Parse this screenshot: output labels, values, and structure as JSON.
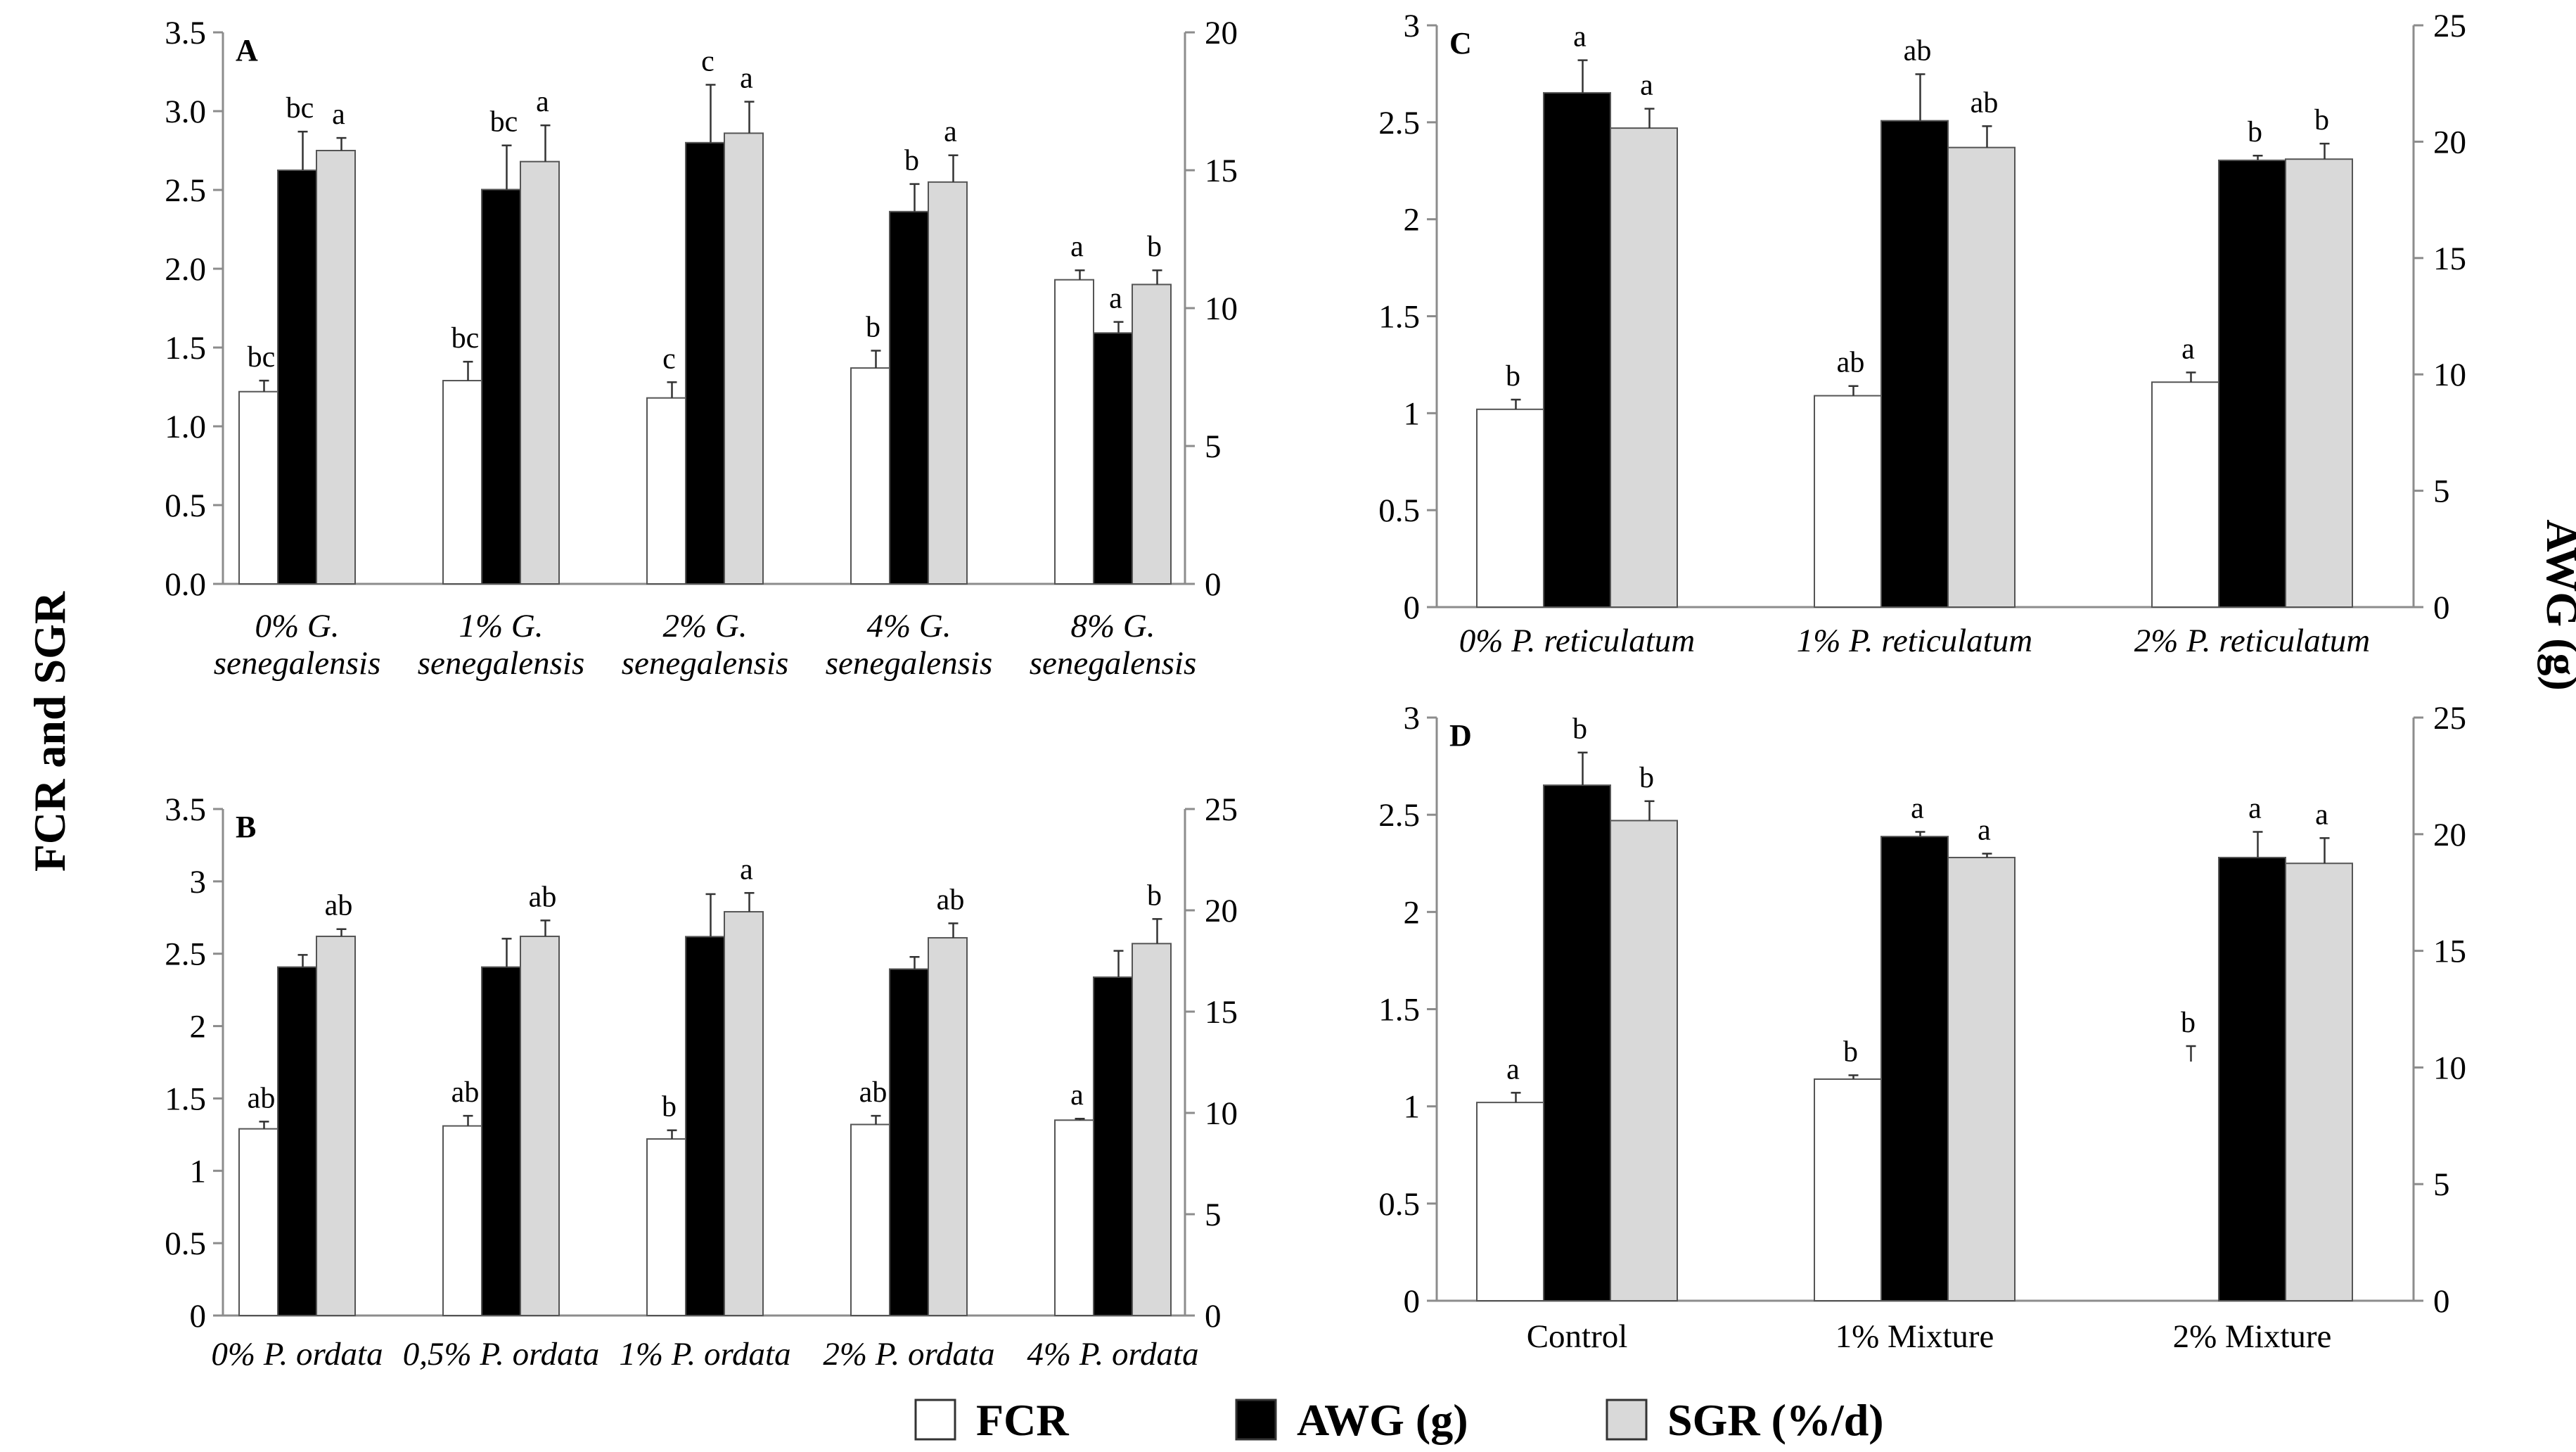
{
  "figure": {
    "left_axis_title": "FCR and SGR",
    "right_axis_title": "AWG (g)"
  },
  "legend": [
    {
      "key": "FCR",
      "label": "FCR",
      "color": "#ffffff"
    },
    {
      "key": "AWG",
      "label": "AWG (g)",
      "color": "#000000"
    },
    {
      "key": "SGR",
      "label": "SGR (%/d)",
      "color": "#d9d9d9"
    }
  ],
  "colors": {
    "FCR": "#ffffff",
    "AWG": "#000000",
    "SGR": "#d9d9d9",
    "edge": "#555555",
    "axis": "#8c8c8c"
  },
  "chart_data": [
    {
      "panel": "A",
      "type": "bar",
      "categories": [
        [
          "0% G.",
          "senegalensis"
        ],
        [
          "1% G.",
          "senegalensis"
        ],
        [
          "2% G.",
          "senegalensis"
        ],
        [
          "4% G.",
          "senegalensis"
        ],
        [
          "8% G.",
          "senegalensis"
        ]
      ],
      "category_style": "italic",
      "left_axis": {
        "min": 0,
        "max": 3.5,
        "step": 0.5,
        "decimals": 1
      },
      "right_axis": {
        "min": 0,
        "max": 20,
        "step": 5
      },
      "series": [
        {
          "name": "FCR",
          "axis": "left",
          "values": [
            1.22,
            1.29,
            1.18,
            1.37,
            1.93
          ],
          "errors": [
            0.07,
            0.12,
            0.1,
            0.11,
            0.06
          ],
          "letters": [
            "bc",
            "bc",
            "c",
            "b",
            "a"
          ]
        },
        {
          "name": "AWG (g)",
          "axis": "right",
          "values": [
            15.0,
            14.3,
            16.0,
            13.5,
            9.1
          ],
          "errors": [
            1.4,
            1.6,
            2.1,
            1.0,
            0.4
          ],
          "letters": [
            "bc",
            "bc",
            "c",
            "b",
            "a"
          ]
        },
        {
          "name": "SGR (%/d)",
          "axis": "left",
          "values": [
            2.75,
            2.68,
            2.86,
            2.55,
            1.9
          ],
          "errors": [
            0.08,
            0.23,
            0.2,
            0.17,
            0.09
          ],
          "letters": [
            "a",
            "a",
            "a",
            "a",
            "b"
          ]
        }
      ]
    },
    {
      "panel": "B",
      "type": "bar",
      "categories": [
        [
          "0% P. ordata"
        ],
        [
          "0,5% P. ordata"
        ],
        [
          "1% P. ordata"
        ],
        [
          "2% P. ordata"
        ],
        [
          "4% P. ordata"
        ]
      ],
      "category_style": "italic",
      "left_axis": {
        "min": 0,
        "max": 3.5,
        "step": 0.5,
        "decimals": -1
      },
      "right_axis": {
        "min": 0,
        "max": 25,
        "step": 5
      },
      "series": [
        {
          "name": "FCR",
          "axis": "left",
          "values": [
            1.29,
            1.31,
            1.22,
            1.32,
            1.35
          ],
          "errors": [
            0.05,
            0.07,
            0.06,
            0.06,
            0.01
          ],
          "letters": [
            "ab",
            "ab",
            "b",
            "ab",
            "a"
          ]
        },
        {
          "name": "AWG (g)",
          "axis": "right",
          "values": [
            17.2,
            17.2,
            18.7,
            17.1,
            16.7
          ],
          "errors": [
            0.6,
            1.4,
            2.1,
            0.6,
            1.3
          ],
          "letters": [
            "",
            "",
            "",
            "",
            ""
          ]
        },
        {
          "name": "SGR (%/d)",
          "axis": "left",
          "values": [
            2.62,
            2.62,
            2.79,
            2.61,
            2.57
          ],
          "errors": [
            0.05,
            0.11,
            0.13,
            0.1,
            0.17
          ],
          "letters": [
            "ab",
            "ab",
            "a",
            "ab",
            "b"
          ]
        }
      ]
    },
    {
      "panel": "C",
      "type": "bar",
      "categories": [
        [
          "0% P. reticulatum"
        ],
        [
          "1% P. reticulatum"
        ],
        [
          "2% P. reticulatum"
        ]
      ],
      "category_style": "italic",
      "left_axis": {
        "min": 0,
        "max": 3,
        "step": 0.5,
        "decimals": -1
      },
      "right_axis": {
        "min": 0,
        "max": 25,
        "step": 5
      },
      "series": [
        {
          "name": "FCR",
          "axis": "left",
          "values": [
            1.02,
            1.09,
            1.16
          ],
          "errors": [
            0.05,
            0.05,
            0.05
          ],
          "letters": [
            "b",
            "ab",
            "a"
          ]
        },
        {
          "name": "AWG (g)",
          "axis": "right",
          "values": [
            22.1,
            20.9,
            19.2
          ],
          "errors": [
            1.4,
            2.0,
            0.2
          ],
          "letters": [
            "a",
            "ab",
            "b"
          ]
        },
        {
          "name": "SGR (%/d)",
          "axis": "left",
          "values": [
            2.47,
            2.37,
            2.31
          ],
          "errors": [
            0.1,
            0.11,
            0.08
          ],
          "letters": [
            "a",
            "ab",
            "b"
          ]
        }
      ]
    },
    {
      "panel": "D",
      "type": "bar",
      "categories": [
        [
          "Control"
        ],
        [
          "1% Mixture"
        ],
        [
          "2% Mixture"
        ]
      ],
      "category_style": "normal",
      "left_axis": {
        "min": 0,
        "max": 3,
        "step": 0.5,
        "decimals": -1
      },
      "right_axis": {
        "min": 0,
        "max": 25,
        "step": 5
      },
      "series": [
        {
          "name": "FCR",
          "axis": "left",
          "values": [
            1.02,
            1.14,
            null
          ],
          "errors": [
            0.05,
            0.02,
            null
          ],
          "letters": [
            "a",
            "b",
            "b"
          ],
          "error_tops": [
            null,
            null,
            1.31
          ]
        },
        {
          "name": "AWG (g)",
          "axis": "right",
          "values": [
            22.1,
            19.9,
            19.0
          ],
          "errors": [
            1.4,
            0.2,
            1.1
          ],
          "letters": [
            "b",
            "a",
            "a"
          ]
        },
        {
          "name": "SGR (%/d)",
          "axis": "left",
          "values": [
            2.47,
            2.28,
            2.25
          ],
          "errors": [
            0.1,
            0.02,
            0.13
          ],
          "letters": [
            "b",
            "a",
            "a"
          ]
        }
      ]
    }
  ]
}
